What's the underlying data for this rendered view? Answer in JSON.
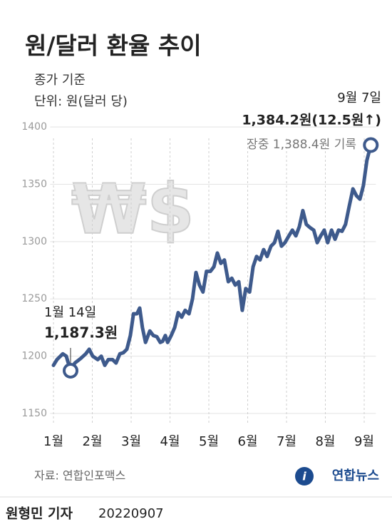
{
  "chart_data": {
    "type": "line",
    "title": "원/달러 환율 추이",
    "subtitle": [
      "종가 기준",
      "단위: 원(달러 당)"
    ],
    "watermark": "₩$",
    "x": [
      1.0,
      1.09,
      1.24,
      1.33,
      1.44,
      1.55,
      1.7,
      1.83,
      1.92,
      2.01,
      2.14,
      2.23,
      2.32,
      2.41,
      2.52,
      2.61,
      2.71,
      2.8,
      2.89,
      2.98,
      3.06,
      3.15,
      3.22,
      3.29,
      3.37,
      3.48,
      3.57,
      3.66,
      3.75,
      3.81,
      3.88,
      3.94,
      4.03,
      4.12,
      4.21,
      4.3,
      4.39,
      4.49,
      4.58,
      4.67,
      4.76,
      4.85,
      4.94,
      5.04,
      5.13,
      5.22,
      5.31,
      5.4,
      5.5,
      5.59,
      5.68,
      5.77,
      5.86,
      5.95,
      6.05,
      6.14,
      6.23,
      6.32,
      6.41,
      6.5,
      6.6,
      6.69,
      6.78,
      6.87,
      6.96,
      7.06,
      7.15,
      7.24,
      7.33,
      7.42,
      7.51,
      7.61,
      7.7,
      7.79,
      7.88,
      7.97,
      8.06,
      8.16,
      8.25,
      8.34,
      8.43,
      8.52,
      8.61,
      8.71,
      8.8,
      8.89,
      8.98,
      9.07,
      9.17
    ],
    "series": [
      {
        "color": "#3e5a8c",
        "values": [
          1192,
          1197,
          1202,
          1200,
          1187.3,
          1194,
          1198,
          1202,
          1206,
          1200,
          1197,
          1200,
          1192,
          1197,
          1197,
          1194,
          1202,
          1203,
          1206,
          1218,
          1237,
          1237,
          1242,
          1225,
          1212,
          1222,
          1218,
          1217,
          1212,
          1213,
          1218,
          1212,
          1218,
          1225,
          1238,
          1234,
          1240,
          1237,
          1250,
          1273,
          1262,
          1256,
          1274,
          1274,
          1278,
          1290,
          1281,
          1284,
          1265,
          1268,
          1262,
          1265,
          1240,
          1259,
          1256,
          1278,
          1287,
          1284,
          1293,
          1287,
          1296,
          1299,
          1309,
          1296,
          1299,
          1305,
          1310,
          1305,
          1313,
          1327,
          1315,
          1312,
          1310,
          1299,
          1305,
          1310,
          1299,
          1310,
          1302,
          1310,
          1309,
          1315,
          1330,
          1346,
          1340,
          1337,
          1349,
          1371,
          1384.2
        ]
      }
    ],
    "xlim": [
      0.95,
      9.3
    ],
    "xticks": [
      {
        "value": 1,
        "label": "1월"
      },
      {
        "value": 2,
        "label": "2월"
      },
      {
        "value": 3,
        "label": "3월"
      },
      {
        "value": 4,
        "label": "4월"
      },
      {
        "value": 5,
        "label": "5월"
      },
      {
        "value": 6,
        "label": "6월"
      },
      {
        "value": 7,
        "label": "7월"
      },
      {
        "value": 8,
        "label": "8월"
      },
      {
        "value": 9,
        "label": "9월"
      }
    ],
    "ylim": [
      1140,
      1415
    ],
    "yticks": [
      1150,
      1200,
      1250,
      1300,
      1350,
      1400
    ],
    "grid": true,
    "annotations": [
      {
        "x": 1.44,
        "value": 1187.3,
        "date": "1월 14일",
        "label": "1,187.3원"
      },
      {
        "x": 9.17,
        "value": 1384.2,
        "date": "9월 7일",
        "label": "1,384.2원(12.5원↑)",
        "note": "장중 1,388.4원 기록"
      }
    ],
    "source": "자료: 연합인포맥스",
    "logo": "연합뉴스",
    "credit": {
      "name": "원형민 기자",
      "date": "20220907"
    }
  }
}
